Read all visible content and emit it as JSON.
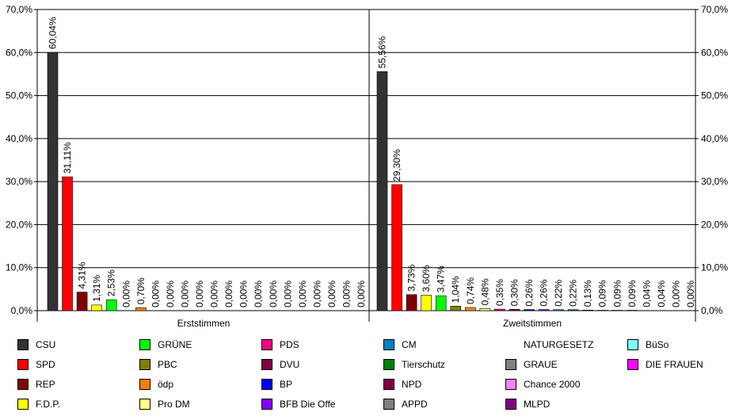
{
  "chart_data": {
    "type": "bar",
    "ylim": [
      0,
      70
    ],
    "yticks": [
      "0,0%",
      "10,0%",
      "20,0%",
      "30,0%",
      "40,0%",
      "50,0%",
      "60,0%",
      "70,0%"
    ],
    "grid": true,
    "panels": [
      {
        "category": "Erststimmen",
        "bars": [
          {
            "party": "CSU",
            "value": 60.04,
            "label": "60,04%"
          },
          {
            "party": "SPD",
            "value": 31.11,
            "label": "31,11%"
          },
          {
            "party": "REP",
            "value": 4.31,
            "label": "4,31%"
          },
          {
            "party": "F.D.P.",
            "value": 1.31,
            "label": "1,31%"
          },
          {
            "party": "GRÜNE",
            "value": 2.53,
            "label": "2,53%"
          },
          {
            "party": "PBC",
            "value": 0.0,
            "label": "0,00%"
          },
          {
            "party": "ödp",
            "value": 0.7,
            "label": "0,70%"
          },
          {
            "party": "Pro DM",
            "value": 0.0,
            "label": "0,00%"
          },
          {
            "party": "PDS",
            "value": 0.0,
            "label": "0,00%"
          },
          {
            "party": "DVU",
            "value": 0.0,
            "label": "0,00%"
          },
          {
            "party": "BP",
            "value": 0.0,
            "label": "0,00%"
          },
          {
            "party": "BFB Die Offe",
            "value": 0.0,
            "label": "0,00%"
          },
          {
            "party": "CM",
            "value": 0.0,
            "label": "0,00%"
          },
          {
            "party": "Tierschutz",
            "value": 0.0,
            "label": "0,00%"
          },
          {
            "party": "NPD",
            "value": 0.0,
            "label": "0,00%"
          },
          {
            "party": "APPD",
            "value": 0.0,
            "label": "0,00%"
          },
          {
            "party": "NATURGESETZ",
            "value": 0.0,
            "label": "0,00%"
          },
          {
            "party": "GRAUE",
            "value": 0.0,
            "label": "0,00%"
          },
          {
            "party": "Chance 2000",
            "value": 0.0,
            "label": "0,00%"
          },
          {
            "party": "MLPD",
            "value": 0.0,
            "label": "0,00%"
          },
          {
            "party": "BüSo",
            "value": 0.0,
            "label": "0,00%"
          },
          {
            "party": "DIE FRAUEN",
            "value": 0.0,
            "label": "0,00%"
          }
        ]
      },
      {
        "category": "Zweitstimmen",
        "bars": [
          {
            "party": "CSU",
            "value": 55.56,
            "label": "55,56%"
          },
          {
            "party": "SPD",
            "value": 29.3,
            "label": "29,30%"
          },
          {
            "party": "REP",
            "value": 3.73,
            "label": "3,73%"
          },
          {
            "party": "F.D.P.",
            "value": 3.6,
            "label": "3,60%"
          },
          {
            "party": "GRÜNE",
            "value": 3.47,
            "label": "3,47%"
          },
          {
            "party": "PBC",
            "value": 1.04,
            "label": "1,04%"
          },
          {
            "party": "ödp",
            "value": 0.74,
            "label": "0,74%"
          },
          {
            "party": "Pro DM",
            "value": 0.48,
            "label": "0,48%"
          },
          {
            "party": "PDS",
            "value": 0.35,
            "label": "0,35%"
          },
          {
            "party": "DVU",
            "value": 0.3,
            "label": "0,30%"
          },
          {
            "party": "BP",
            "value": 0.26,
            "label": "0,26%"
          },
          {
            "party": "BFB Die Offe",
            "value": 0.26,
            "label": "0,26%"
          },
          {
            "party": "CM",
            "value": 0.22,
            "label": "0,22%"
          },
          {
            "party": "Tierschutz",
            "value": 0.22,
            "label": "0,22%"
          },
          {
            "party": "NPD",
            "value": 0.13,
            "label": "0,13%"
          },
          {
            "party": "APPD",
            "value": 0.09,
            "label": "0,09%"
          },
          {
            "party": "NATURGESETZ",
            "value": 0.09,
            "label": "0,09%"
          },
          {
            "party": "GRAUE",
            "value": 0.09,
            "label": "0,09%"
          },
          {
            "party": "Chance 2000",
            "value": 0.04,
            "label": "0,04%"
          },
          {
            "party": "MLPD",
            "value": 0.04,
            "label": "0,04%"
          },
          {
            "party": "BüSo",
            "value": 0.0,
            "label": "0,00%"
          },
          {
            "party": "DIE FRAUEN",
            "value": 0.0,
            "label": "0,00%"
          }
        ]
      }
    ]
  },
  "legend": {
    "columns": [
      [
        {
          "label": "CSU",
          "color": "#333333"
        },
        {
          "label": "SPD",
          "color": "#ff0000"
        },
        {
          "label": "REP",
          "color": "#800000"
        },
        {
          "label": "F.D.P.",
          "color": "#ffff00"
        }
      ],
      [
        {
          "label": "GRÜNE",
          "color": "#00ff00"
        },
        {
          "label": "PBC",
          "color": "#808000"
        },
        {
          "label": "ödp",
          "color": "#ff8000"
        },
        {
          "label": "Pro DM",
          "color": "#ffff80"
        }
      ],
      [
        {
          "label": "PDS",
          "color": "#ff0080"
        },
        {
          "label": "DVU",
          "color": "#800040"
        },
        {
          "label": "BP",
          "color": "#0000ff"
        },
        {
          "label": "BFB Die Offe",
          "color": "#8000ff"
        }
      ],
      [
        {
          "label": "CM",
          "color": "#0080c0"
        },
        {
          "label": "Tierschutz",
          "color": "#008000"
        },
        {
          "label": "NPD",
          "color": "#800040"
        },
        {
          "label": "APPD",
          "color": "#808080"
        }
      ],
      [
        {
          "label": "NATURGESETZ",
          "color": "none"
        },
        {
          "label": "GRAUE",
          "color": "#808080"
        },
        {
          "label": "Chance 2000",
          "color": "#ff80ff"
        },
        {
          "label": "MLPD",
          "color": "#800080"
        }
      ],
      [
        {
          "label": "BüSo",
          "color": "#80ffff"
        },
        {
          "label": "DIE FRAUEN",
          "color": "#ff00ff"
        }
      ]
    ]
  }
}
